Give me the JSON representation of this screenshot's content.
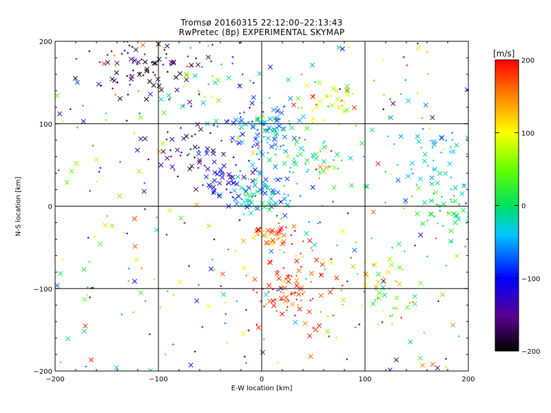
{
  "chart": {
    "title_line1": "Tromsø 20160315 22:12:00–22:13:43",
    "title_line2": "RwPretec (8p) EXPERIMENTAL SKYMAP",
    "xlabel": "E-W location [km]",
    "ylabel": "N-S location [km]",
    "colorbar_unit": "[m/s]"
  },
  "chart_data": {
    "type": "scatter",
    "title": "Tromsø 20160315 22:12:00–22:13:43",
    "subtitle": "RwPretec (8p) EXPERIMENTAL SKYMAP",
    "xlabel": "E-W location [km]",
    "ylabel": "N-S location [km]",
    "xlim": [
      -200,
      200
    ],
    "ylim": [
      -200,
      200
    ],
    "xticks": [
      -200,
      -100,
      0,
      100,
      200
    ],
    "yticks": [
      -200,
      -100,
      0,
      100,
      200
    ],
    "xtick_labels": [
      "−200",
      "−100",
      "0",
      "100",
      "200"
    ],
    "ytick_labels": [
      "−200",
      "−100",
      "0",
      "100",
      "200"
    ],
    "grid": true,
    "colorbar": {
      "label": "[m/s]",
      "min": -200,
      "max": 200,
      "ticks": [
        -200,
        -100,
        0,
        100,
        200
      ],
      "tick_labels": [
        "−200",
        "−100",
        "0",
        "100",
        "200"
      ],
      "colormap": "rainbow (black-purple-blue-cyan-green-yellow-red)"
    },
    "markers": [
      "x (large crosses)",
      "+ (small plus)"
    ],
    "clusters": [
      {
        "x": -120,
        "y": 165,
        "spread": [
          25,
          20
        ],
        "count": 70,
        "value": -185,
        "vspread": 25
      },
      {
        "x": 0,
        "y": 95,
        "spread": [
          18,
          15
        ],
        "count": 90,
        "value": -55,
        "vspread": 30
      },
      {
        "x": 0,
        "y": 15,
        "spread": [
          18,
          15
        ],
        "count": 90,
        "value": -45,
        "vspread": 35
      },
      {
        "x": -40,
        "y": 30,
        "spread": [
          12,
          10
        ],
        "count": 30,
        "value": -120,
        "vspread": 20
      },
      {
        "x": 45,
        "y": 55,
        "spread": [
          20,
          15
        ],
        "count": 45,
        "value": 10,
        "vspread": 30
      },
      {
        "x": 65,
        "y": 125,
        "spread": [
          20,
          15
        ],
        "count": 35,
        "value": 90,
        "vspread": 60
      },
      {
        "x": 170,
        "y": 50,
        "spread": [
          30,
          25
        ],
        "count": 55,
        "value": -35,
        "vspread": 20
      },
      {
        "x": 180,
        "y": -12,
        "spread": [
          20,
          15
        ],
        "count": 45,
        "value": 10,
        "vspread": 20
      },
      {
        "x": 10,
        "y": -40,
        "spread": [
          12,
          8
        ],
        "count": 40,
        "value": 170,
        "vspread": 30
      },
      {
        "x": 35,
        "y": -100,
        "spread": [
          25,
          25
        ],
        "count": 90,
        "value": 185,
        "vspread": 25
      },
      {
        "x": 120,
        "y": -80,
        "spread": [
          15,
          20
        ],
        "count": 20,
        "value": 90,
        "vspread": 40
      },
      {
        "x": 130,
        "y": -120,
        "spread": [
          15,
          15
        ],
        "count": 20,
        "value": 60,
        "vspread": 50
      },
      {
        "x": -70,
        "y": 60,
        "spread": [
          25,
          20
        ],
        "count": 50,
        "value": -150,
        "vspread": 40
      },
      {
        "x": -60,
        "y": 160,
        "spread": [
          35,
          30
        ],
        "count": 40,
        "value": -30,
        "vspread": 90
      }
    ],
    "background_points": 320
  }
}
